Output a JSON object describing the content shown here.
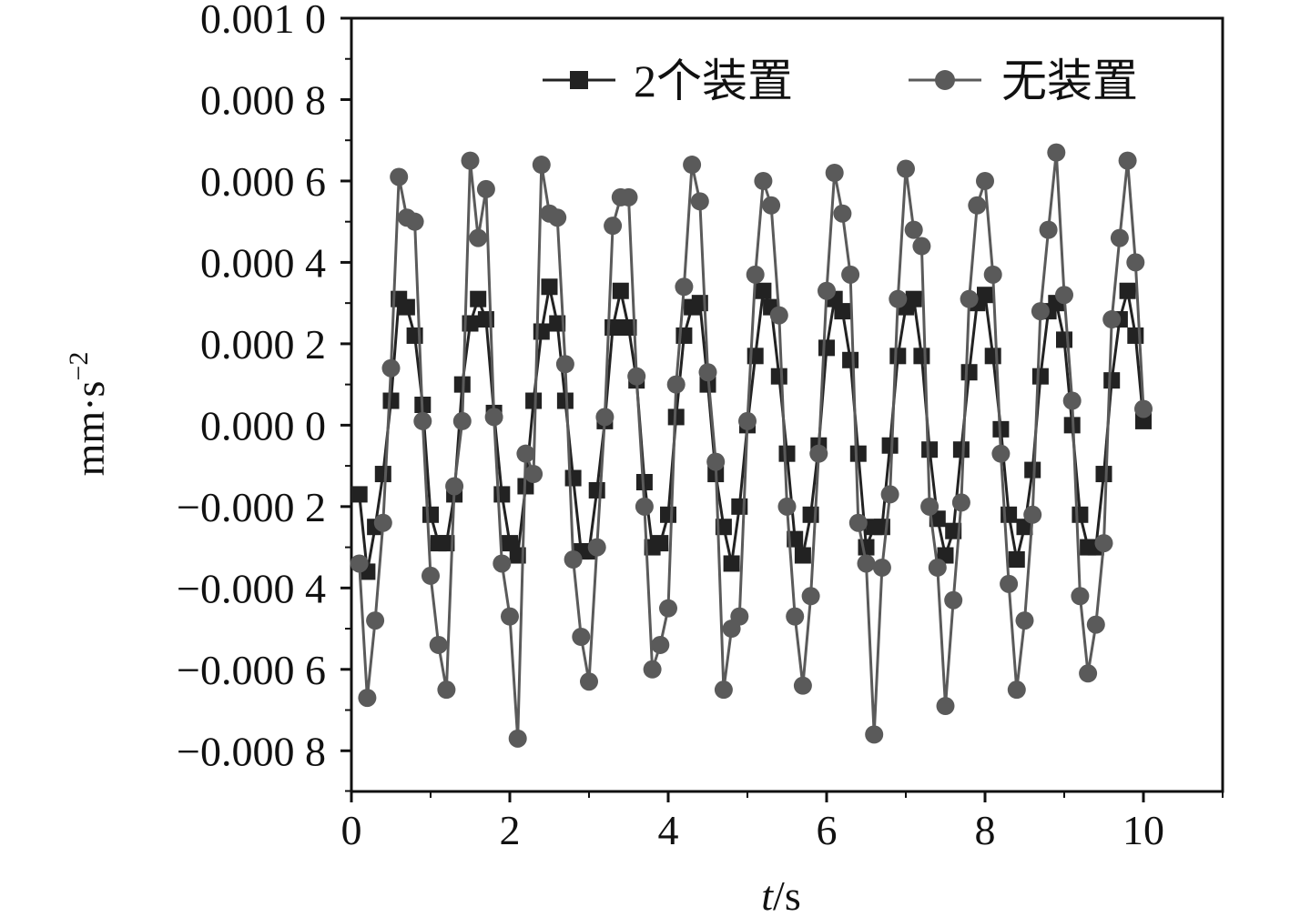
{
  "chart_data": {
    "type": "line",
    "title": "",
    "xlabel_italic": "t",
    "xlabel_rest": "/s",
    "ylabel_base": "mm·s",
    "ylabel_sup": "−2",
    "xlim": [
      0,
      11
    ],
    "ylim": [
      -0.0009,
      0.001
    ],
    "x_ticks": [
      0,
      2,
      4,
      6,
      8,
      10
    ],
    "x_tick_labels": [
      "0",
      "2",
      "4",
      "6",
      "8",
      "10"
    ],
    "y_ticks": [
      0.001,
      0.0008,
      0.0006,
      0.0004,
      0.0002,
      0.0,
      -0.0002,
      -0.0004,
      -0.0006,
      -0.0008
    ],
    "y_tick_labels": [
      "0.001 0",
      "0.000 8",
      "0.000 6",
      "0.000 4",
      "0.000 2",
      "0.000 0",
      "−0.000 2",
      "−0.000 4",
      "−0.000 6",
      "−0.000 8"
    ],
    "legend_position": "top-right",
    "grid": false,
    "x": [
      0.1,
      0.2,
      0.3,
      0.4,
      0.5,
      0.6,
      0.7,
      0.8,
      0.9,
      1.0,
      1.1,
      1.2,
      1.3,
      1.4,
      1.5,
      1.6,
      1.7,
      1.8,
      1.9,
      2.0,
      2.1,
      2.2,
      2.3,
      2.4,
      2.5,
      2.6,
      2.7,
      2.8,
      2.9,
      3.0,
      3.1,
      3.2,
      3.3,
      3.4,
      3.5,
      3.6,
      3.7,
      3.8,
      3.9,
      4.0,
      4.1,
      4.2,
      4.3,
      4.4,
      4.5,
      4.6,
      4.7,
      4.8,
      4.9,
      5.0,
      5.1,
      5.2,
      5.3,
      5.4,
      5.5,
      5.6,
      5.7,
      5.8,
      5.9,
      6.0,
      6.1,
      6.2,
      6.3,
      6.4,
      6.5,
      6.6,
      6.7,
      6.8,
      6.9,
      7.0,
      7.1,
      7.2,
      7.3,
      7.4,
      7.5,
      7.6,
      7.7,
      7.8,
      7.9,
      8.0,
      8.1,
      8.2,
      8.3,
      8.4,
      8.5,
      8.6,
      8.7,
      8.8,
      8.9,
      9.0,
      9.1,
      9.2,
      9.3,
      9.4,
      9.5,
      9.6,
      9.7,
      9.8,
      9.9,
      10.0
    ],
    "series": [
      {
        "name": "2个装置",
        "marker": "square",
        "color": "#222222",
        "values": [
          -0.00017,
          -0.00036,
          -0.00025,
          -0.00012,
          6e-05,
          0.00031,
          0.00029,
          0.00022,
          5e-05,
          -0.00022,
          -0.00029,
          -0.00029,
          -0.00017,
          0.0001,
          0.00025,
          0.00031,
          0.00026,
          3e-05,
          -0.00017,
          -0.00029,
          -0.00032,
          -0.00015,
          6e-05,
          0.00023,
          0.00034,
          0.00025,
          6e-05,
          -0.00013,
          -0.00031,
          -0.00031,
          -0.00016,
          1e-05,
          0.00024,
          0.00033,
          0.00024,
          0.00011,
          -0.00014,
          -0.0003,
          -0.00029,
          -0.00022,
          2e-05,
          0.00022,
          0.00029,
          0.0003,
          0.0001,
          -0.00012,
          -0.00025,
          -0.00034,
          -0.0002,
          0.0,
          0.00017,
          0.00033,
          0.00029,
          0.00012,
          -7e-05,
          -0.00028,
          -0.00032,
          -0.00022,
          -5e-05,
          0.00019,
          0.00031,
          0.00028,
          0.00016,
          -7e-05,
          -0.0003,
          -0.00025,
          -0.00025,
          -5e-05,
          0.00017,
          0.00029,
          0.00031,
          0.00017,
          -6e-05,
          -0.00023,
          -0.00032,
          -0.00026,
          -6e-05,
          0.00013,
          0.0003,
          0.00032,
          0.00017,
          -1e-05,
          -0.00022,
          -0.00033,
          -0.00025,
          -0.00011,
          0.00012,
          0.00028,
          0.0003,
          0.00021,
          0.0,
          -0.00022,
          -0.0003,
          -0.0003,
          -0.00012,
          0.00011,
          0.00026,
          0.00033,
          0.00022,
          1e-05
        ]
      },
      {
        "name": "无装置",
        "marker": "circle",
        "color": "#5a5a5a",
        "values": [
          -0.00034,
          -0.00067,
          -0.00048,
          -0.00024,
          0.00014,
          0.00061,
          0.00051,
          0.0005,
          1e-05,
          -0.00037,
          -0.00054,
          -0.00065,
          -0.00015,
          1e-05,
          0.00065,
          0.00046,
          0.00058,
          2e-05,
          -0.00034,
          -0.00047,
          -0.00077,
          -7e-05,
          -0.00012,
          0.00064,
          0.00052,
          0.00051,
          0.00015,
          -0.00033,
          -0.00052,
          -0.00063,
          -0.0003,
          2e-05,
          0.00049,
          0.00056,
          0.00056,
          0.00012,
          -0.0002,
          -0.0006,
          -0.00054,
          -0.00045,
          0.0001,
          0.00034,
          0.00064,
          0.00055,
          0.00013,
          -9e-05,
          -0.00065,
          -0.0005,
          -0.00047,
          1e-05,
          0.00037,
          0.0006,
          0.00054,
          0.00027,
          -0.0002,
          -0.00047,
          -0.00064,
          -0.00042,
          -7e-05,
          0.00033,
          0.00062,
          0.00052,
          0.00037,
          -0.00024,
          -0.00034,
          -0.00076,
          -0.00035,
          -0.00017,
          0.00031,
          0.00063,
          0.00048,
          0.00044,
          -0.0002,
          -0.00035,
          -0.00069,
          -0.00043,
          -0.00019,
          0.00031,
          0.00054,
          0.0006,
          0.00037,
          -7e-05,
          -0.00039,
          -0.00065,
          -0.00048,
          -0.00022,
          0.00028,
          0.00048,
          0.00067,
          0.00032,
          6e-05,
          -0.00042,
          -0.00061,
          -0.00049,
          -0.00029,
          0.00026,
          0.00046,
          0.00065,
          0.0004,
          4e-05
        ]
      }
    ]
  }
}
